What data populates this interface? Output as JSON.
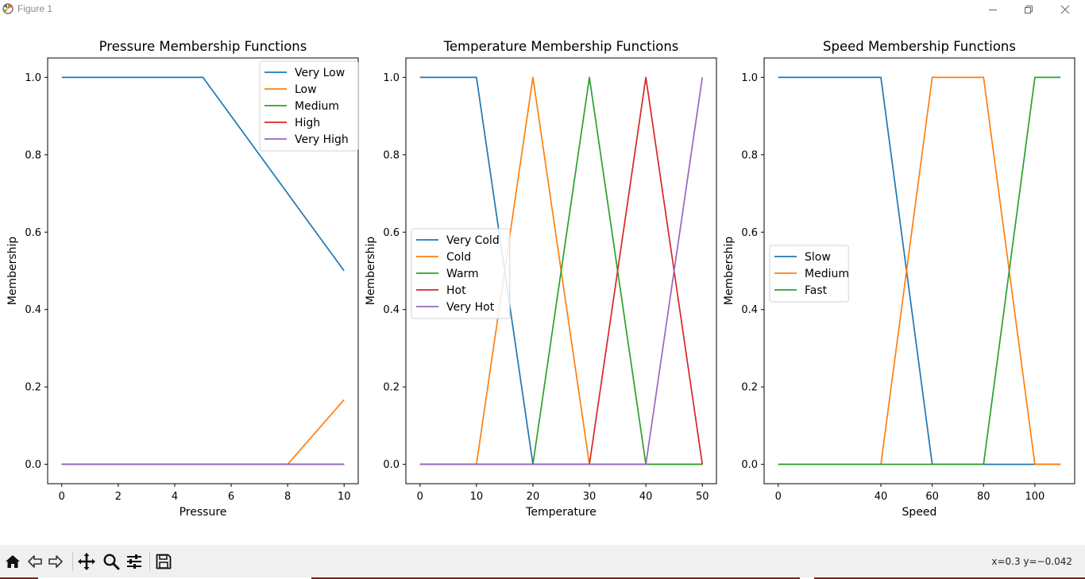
{
  "window": {
    "title": "Figure 1"
  },
  "toolbar": {
    "buttons": [
      "home-icon",
      "back-icon",
      "forward-icon",
      "pan-icon",
      "zoom-icon",
      "configure-icon",
      "save-icon"
    ],
    "coords": "x=0.3 y=−0.042"
  },
  "colors": {
    "C0": "#1f77b4",
    "C1": "#ff7f0e",
    "C2": "#2ca02c",
    "C3": "#d62728",
    "C4": "#9467bd",
    "toolbar_bg": "#f0f0f0"
  },
  "chart_data": [
    {
      "type": "line",
      "title": "Pressure Membership Functions",
      "xlabel": "Pressure",
      "ylabel": "Membership",
      "xlim": [
        -0.5,
        10.5
      ],
      "ylim": [
        -0.05,
        1.05
      ],
      "xticks": [
        0,
        2,
        4,
        6,
        8,
        10
      ],
      "yticks": [
        0.0,
        0.2,
        0.4,
        0.6,
        0.8,
        1.0
      ],
      "legend_loc": "upper right",
      "series": [
        {
          "name": "Very Low",
          "color": "#1f77b4",
          "x": [
            0,
            5,
            10
          ],
          "y": [
            1,
            1,
            0.5
          ]
        },
        {
          "name": "Low",
          "color": "#ff7f0e",
          "x": [
            0,
            8,
            10
          ],
          "y": [
            0,
            0,
            0.167
          ]
        },
        {
          "name": "Medium",
          "color": "#2ca02c",
          "x": [
            0,
            10
          ],
          "y": [
            0,
            0
          ]
        },
        {
          "name": "High",
          "color": "#d62728",
          "x": [
            0,
            10
          ],
          "y": [
            0,
            0
          ]
        },
        {
          "name": "Very High",
          "color": "#9467bd",
          "x": [
            0,
            10
          ],
          "y": [
            0,
            0
          ]
        }
      ]
    },
    {
      "type": "line",
      "title": "Temperature Membership Functions",
      "xlabel": "Temperature",
      "ylabel": "Membership",
      "xlim": [
        -2.5,
        52.5
      ],
      "ylim": [
        -0.05,
        1.05
      ],
      "xticks": [
        0,
        10,
        20,
        30,
        40,
        50
      ],
      "yticks": [
        0.0,
        0.2,
        0.4,
        0.6,
        0.8,
        1.0
      ],
      "legend_loc": "center left",
      "series": [
        {
          "name": "Very Cold",
          "color": "#1f77b4",
          "x": [
            0,
            10,
            20,
            50
          ],
          "y": [
            1,
            1,
            0,
            0
          ]
        },
        {
          "name": "Cold",
          "color": "#ff7f0e",
          "x": [
            0,
            10,
            20,
            30,
            50
          ],
          "y": [
            0,
            0,
            1,
            0,
            0
          ]
        },
        {
          "name": "Warm",
          "color": "#2ca02c",
          "x": [
            0,
            20,
            30,
            40,
            50
          ],
          "y": [
            0,
            0,
            1,
            0,
            0
          ]
        },
        {
          "name": "Hot",
          "color": "#d62728",
          "x": [
            0,
            30,
            40,
            50
          ],
          "y": [
            0,
            0,
            1,
            0
          ]
        },
        {
          "name": "Very Hot",
          "color": "#9467bd",
          "x": [
            0,
            40,
            50
          ],
          "y": [
            0,
            0,
            1
          ]
        }
      ]
    },
    {
      "type": "line",
      "title": "Speed Membership Functions",
      "xlabel": "Speed",
      "ylabel": "Membership",
      "xlim": [
        -5.5,
        115.5
      ],
      "ylim": [
        -0.05,
        1.05
      ],
      "xticks": [
        0,
        40,
        60,
        80,
        100
      ],
      "yticks": [
        0.0,
        0.2,
        0.4,
        0.6,
        0.8,
        1.0
      ],
      "legend_loc": "center left",
      "series": [
        {
          "name": "Slow",
          "color": "#1f77b4",
          "x": [
            0,
            40,
            60,
            110
          ],
          "y": [
            1,
            1,
            0,
            0
          ]
        },
        {
          "name": "Medium",
          "color": "#ff7f0e",
          "x": [
            0,
            40,
            60,
            80,
            100,
            110
          ],
          "y": [
            0,
            0,
            1,
            1,
            0,
            0
          ]
        },
        {
          "name": "Fast",
          "color": "#2ca02c",
          "x": [
            0,
            80,
            100,
            110
          ],
          "y": [
            0,
            0,
            1,
            1
          ]
        }
      ]
    }
  ]
}
